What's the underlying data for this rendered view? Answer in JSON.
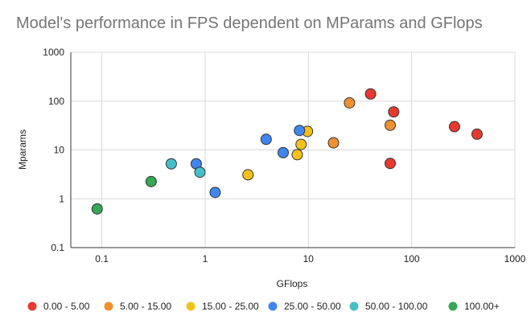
{
  "chart_data": {
    "type": "scatter",
    "title": "Model's performance in FPS dependent on MParams and GFlops",
    "xlabel": "GFlops",
    "ylabel": "Mparams",
    "xscale": "log",
    "yscale": "log",
    "xlim": [
      0.05,
      1000
    ],
    "ylim": [
      0.1,
      1000
    ],
    "x_ticks": [
      "0.1",
      "1",
      "10",
      "100",
      "1000"
    ],
    "y_ticks": [
      "0.1",
      "1",
      "10",
      "100",
      "1000"
    ],
    "grid": true,
    "legend_position": "bottom",
    "series": [
      {
        "name": "0.00 - 5.00",
        "color": "#e8392f",
        "points": [
          [
            40,
            140
          ],
          [
            67,
            60
          ],
          [
            62,
            5.3
          ],
          [
            260,
            30
          ],
          [
            430,
            21
          ]
        ]
      },
      {
        "name": "5.00 - 15.00",
        "color": "#f0912f",
        "points": [
          [
            25,
            92
          ],
          [
            62,
            32
          ],
          [
            17.5,
            14
          ]
        ]
      },
      {
        "name": "15.00 - 25.00",
        "color": "#f6c21a",
        "points": [
          [
            9.8,
            24
          ],
          [
            8.5,
            13
          ],
          [
            7.8,
            8
          ],
          [
            2.6,
            3.1
          ]
        ]
      },
      {
        "name": "25.00 - 50.00",
        "color": "#4086f0",
        "points": [
          [
            8.2,
            25
          ],
          [
            3.9,
            16.5
          ],
          [
            5.7,
            8.8
          ],
          [
            0.82,
            5.2
          ],
          [
            1.25,
            1.35
          ]
        ]
      },
      {
        "name": "50.00 - 100.00",
        "color": "#45bfca",
        "points": [
          [
            0.47,
            5.2
          ],
          [
            0.89,
            3.5
          ]
        ]
      },
      {
        "name": "100.00+",
        "color": "#34a853",
        "points": [
          [
            0.3,
            2.25
          ],
          [
            0.09,
            0.62
          ]
        ]
      }
    ]
  }
}
